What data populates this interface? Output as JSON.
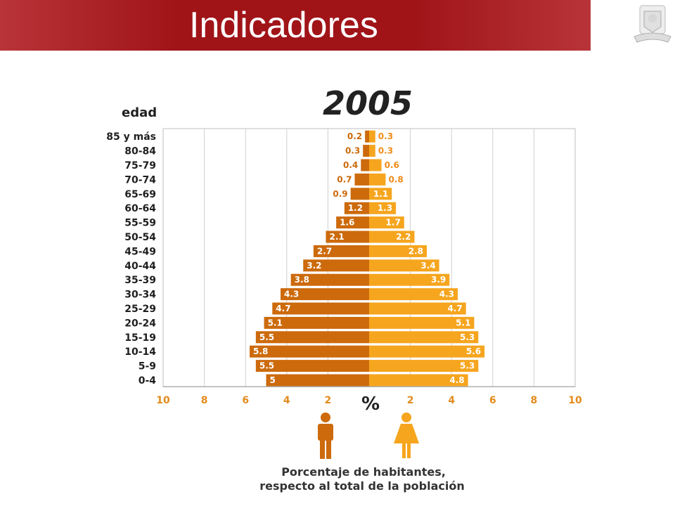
{
  "header": {
    "title": "Indicadores",
    "color": "#a01418"
  },
  "chart_data": {
    "type": "bar",
    "title": "2005",
    "ylabel": "edad",
    "xlabel": "%",
    "caption_lines": [
      "Porcentaje de habitantes,",
      "respecto al total de la población"
    ],
    "categories": [
      "85 y más",
      "80-84",
      "75-79",
      "70-74",
      "65-69",
      "60-64",
      "55-59",
      "50-54",
      "45-49",
      "40-44",
      "35-39",
      "30-34",
      "25-29",
      "20-24",
      "15-19",
      "10-14",
      "5-9",
      "0-4"
    ],
    "series": [
      {
        "side": "left",
        "color": "#cc6a0c",
        "values": [
          0.2,
          0.3,
          0.4,
          0.7,
          0.9,
          1.2,
          1.6,
          2.1,
          2.7,
          3.2,
          3.8,
          4.3,
          4.7,
          5.1,
          5.5,
          5.8,
          5.5,
          5.0
        ]
      },
      {
        "side": "right",
        "color": "#f6a51e",
        "values": [
          0.3,
          0.3,
          0.6,
          0.8,
          1.1,
          1.3,
          1.7,
          2.2,
          2.8,
          3.4,
          3.9,
          4.3,
          4.7,
          5.1,
          5.3,
          5.6,
          5.3,
          4.8
        ]
      }
    ],
    "x_ticks_left": [
      "10",
      "8",
      "6",
      "4",
      "2"
    ],
    "x_ticks_right": [
      "2",
      "4",
      "6",
      "8",
      "10"
    ],
    "xlim": [
      0,
      10
    ],
    "grid": true,
    "icons": [
      "male-icon",
      "female-icon"
    ]
  }
}
